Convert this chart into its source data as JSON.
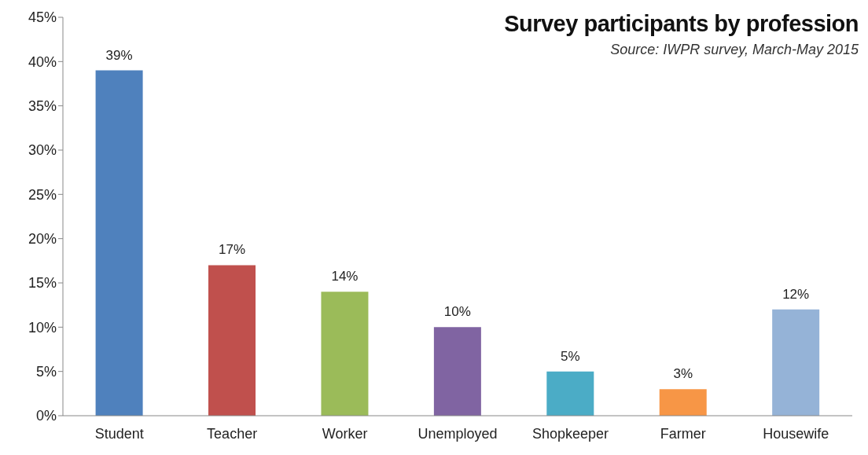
{
  "chart_data": {
    "type": "bar",
    "title": "Survey participants by profession",
    "annotations": [
      "Source: IWPR survey, March-May 2015"
    ],
    "categories": [
      "Student",
      "Teacher",
      "Worker",
      "Unemployed",
      "Shopkeeper",
      "Farmer",
      "Housewife"
    ],
    "values": [
      39,
      17,
      14,
      10,
      5,
      3,
      12
    ],
    "colors": [
      "#4f81bd",
      "#c0504d",
      "#9bbb59",
      "#8064a2",
      "#4bacc6",
      "#f79646",
      "#95b3d7"
    ],
    "value_labels": [
      "39%",
      "17%",
      "14%",
      "10%",
      "5%",
      "3%",
      "12%"
    ],
    "ylim": [
      0,
      45
    ],
    "yticks": [
      {
        "value": 0,
        "label": "0%"
      },
      {
        "value": 5,
        "label": "5%"
      },
      {
        "value": 10,
        "label": "10%"
      },
      {
        "value": 15,
        "label": "15%"
      },
      {
        "value": 20,
        "label": "20%"
      },
      {
        "value": 25,
        "label": "25%"
      },
      {
        "value": 30,
        "label": "30%"
      },
      {
        "value": 35,
        "label": "35%"
      },
      {
        "value": 40,
        "label": "40%"
      },
      {
        "value": 45,
        "label": "45%"
      }
    ],
    "grid": false
  }
}
